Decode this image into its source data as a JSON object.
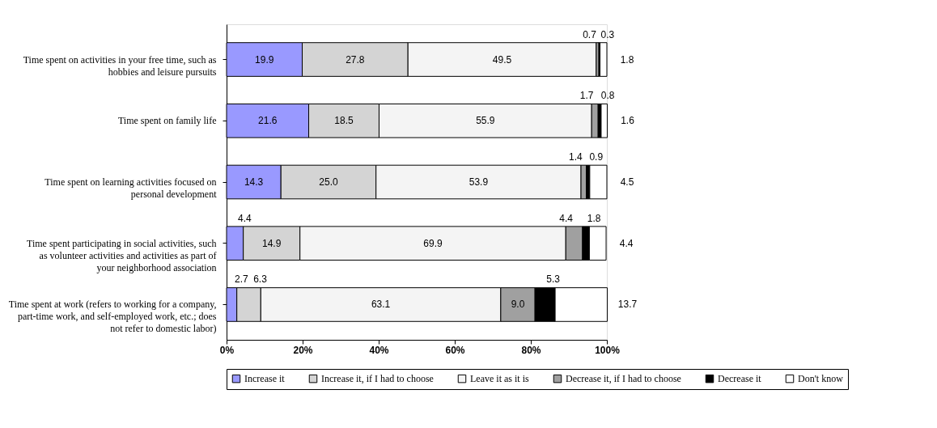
{
  "chart_data": {
    "type": "bar",
    "orientation": "horizontal",
    "stacked": true,
    "categories": [
      "Time spent on activities in your free time, such as hobbies and leisure pursuits",
      "Time spent on family life",
      "Time spent on learning activities focused on personal development",
      "Time spent participating in social activities, such as volunteer activities and activities as part of your neighborhood association",
      "Time spent at work (refers to working for a company, part-time work, and self-employed work, etc.; does not refer to domestic labor)"
    ],
    "series": [
      {
        "name": "Increase it",
        "color": "#9999ff",
        "values": [
          19.9,
          21.6,
          14.3,
          4.4,
          2.7
        ],
        "value_labels": [
          "19.9",
          "21.6",
          "14.3",
          "4.4",
          "2.7"
        ]
      },
      {
        "name": "Increase it, if I had to choose",
        "color": "#d4d4d4",
        "values": [
          27.8,
          18.5,
          25.0,
          14.9,
          6.3
        ],
        "value_labels": [
          "27.8",
          "18.5",
          "25.0",
          "14.9",
          "6.3"
        ]
      },
      {
        "name": "Leave it as it is",
        "color": "#f4f4f4",
        "values": [
          49.5,
          55.9,
          53.9,
          69.9,
          63.1
        ],
        "value_labels": [
          "49.5",
          "55.9",
          "53.9",
          "69.9",
          "63.1"
        ]
      },
      {
        "name": "Decrease it, if I had to choose",
        "color": "#a0a0a0",
        "values": [
          0.7,
          1.7,
          1.4,
          4.4,
          9.0
        ],
        "value_labels": [
          "0.7",
          "1.7",
          "1.4",
          "4.4",
          "9.0"
        ]
      },
      {
        "name": "Decrease it",
        "color": "#000000",
        "values": [
          0.3,
          0.8,
          0.9,
          1.8,
          5.3
        ],
        "value_labels": [
          "0.3",
          "0.8",
          "0.9",
          "1.8",
          "5.3"
        ]
      },
      {
        "name": "Don't know",
        "color": "#ffffff",
        "values": [
          1.8,
          1.6,
          4.5,
          4.4,
          13.7
        ],
        "value_labels": [
          "1.8",
          "1.6",
          "4.5",
          "4.4",
          "13.7"
        ]
      }
    ],
    "xlim": [
      0,
      100
    ],
    "xticks": [
      {
        "value": 0,
        "label": "0%"
      },
      {
        "value": 20,
        "label": "20%"
      },
      {
        "value": 40,
        "label": "40%"
      },
      {
        "value": 60,
        "label": "60%"
      },
      {
        "value": 80,
        "label": "80%"
      },
      {
        "value": 100,
        "label": "100%"
      }
    ],
    "grid": false,
    "legend": "bottom"
  }
}
